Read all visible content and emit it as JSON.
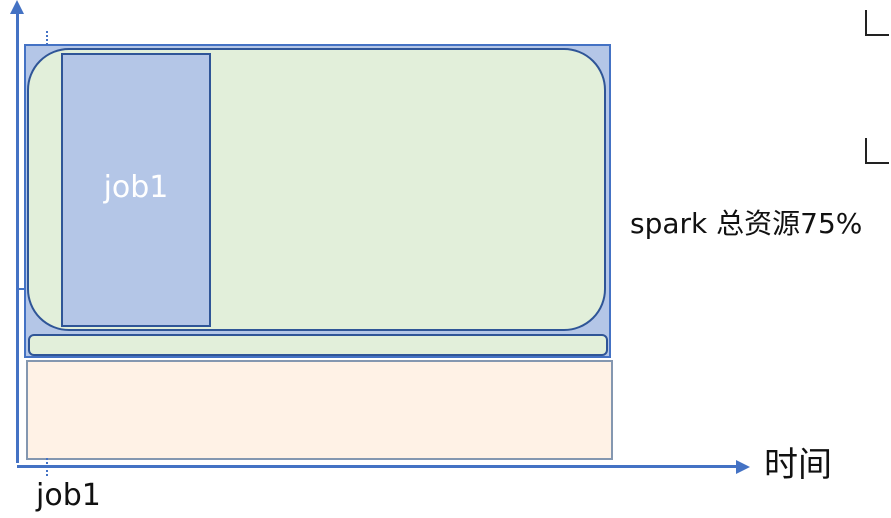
{
  "diagram": {
    "job_block_label": "job1",
    "axis_x_label": "时间",
    "axis_job_label": "job1",
    "annotation": "spark 总资源75%"
  },
  "colors": {
    "axis": "#4472c4",
    "outer_fill": "#b4c6e7",
    "green_fill": "#e2efda",
    "peach_fill": "#fff2e6"
  }
}
